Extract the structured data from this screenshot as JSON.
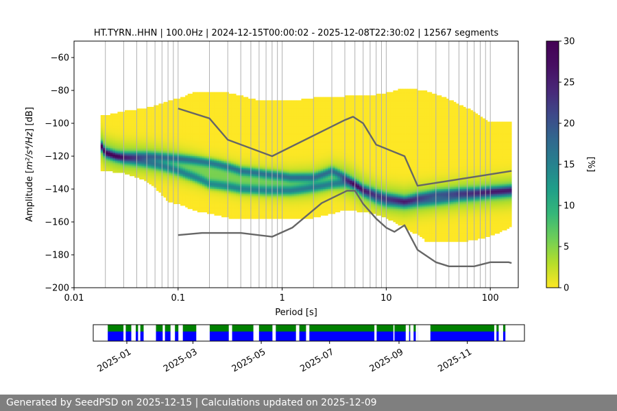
{
  "chart_data": {
    "type": "heatmap",
    "title": "HT.TYRN..HHN | 100.0Hz | 2024-12-15T00:00:02 - 2025-12-08T22:30:02 | 12567 segments",
    "xlabel": "Period [s]",
    "ylabel_prefix": "Amplitude [",
    "ylabel_math": "m²/s⁴/Hz",
    "ylabel_suffix": "] [dB]",
    "x_scale": "log",
    "xlim": [
      0.01,
      160
    ],
    "ylim": [
      -200,
      -50
    ],
    "x_ticks": [
      {
        "value": 0.01,
        "label": "0.01"
      },
      {
        "value": 0.1,
        "label": "0.1"
      },
      {
        "value": 1,
        "label": "1"
      },
      {
        "value": 10,
        "label": "10"
      },
      {
        "value": 100,
        "label": "100"
      }
    ],
    "y_ticks": [
      {
        "value": -60,
        "label": "−60"
      },
      {
        "value": -80,
        "label": "−80"
      },
      {
        "value": -100,
        "label": "−100"
      },
      {
        "value": -120,
        "label": "−120"
      },
      {
        "value": -140,
        "label": "−140"
      },
      {
        "value": -160,
        "label": "−160"
      },
      {
        "value": -180,
        "label": "−180"
      },
      {
        "value": -200,
        "label": "−200"
      }
    ],
    "grid_periods": [
      0.02,
      0.03,
      0.04,
      0.05,
      0.06,
      0.07,
      0.08,
      0.09,
      0.1,
      0.2,
      0.3,
      0.4,
      0.5,
      0.6,
      0.7,
      0.8,
      0.9,
      1,
      2,
      3,
      4,
      5,
      6,
      7,
      8,
      9,
      10,
      20,
      30,
      40,
      50,
      60,
      70,
      80,
      90,
      100
    ],
    "colorbar": {
      "label": "[%]",
      "range": [
        0,
        30
      ],
      "ticks": [
        {
          "value": 0,
          "label": "0"
        },
        {
          "value": 5,
          "label": "5"
        },
        {
          "value": 10,
          "label": "10"
        },
        {
          "value": 15,
          "label": "15"
        },
        {
          "value": 20,
          "label": "20"
        },
        {
          "value": 25,
          "label": "25"
        },
        {
          "value": 30,
          "label": "30"
        }
      ]
    },
    "series": [
      {
        "period": [
          0.1,
          0.2,
          0.3,
          0.8,
          4.0,
          4.8,
          6.0,
          8.0,
          15.0,
          20.0,
          160.0
        ],
        "db": [
          -91,
          -97,
          -110,
          -120,
          -98,
          -96,
          -100,
          -113,
          -120,
          -138,
          -129
        ]
      },
      {
        "period": [
          0.1,
          0.17,
          0.4,
          0.8,
          1.25,
          2.4,
          4.2,
          5.0,
          6.0,
          8.0,
          10.0,
          12.0,
          15.0,
          20.0,
          30.0,
          40.0,
          70.0,
          100.0,
          150.0,
          160.0
        ],
        "db": [
          -168,
          -166.7,
          -166.7,
          -169,
          -163.5,
          -148.5,
          -141,
          -141,
          -149,
          -158,
          -163.5,
          -166,
          -162,
          -177,
          -184.5,
          -187,
          -187,
          -184.5,
          -184.5,
          -185
        ]
      }
    ],
    "psd_mode": {
      "period": [
        0.018,
        0.02,
        0.025,
        0.03,
        0.05,
        0.08,
        0.12,
        0.2,
        0.4,
        0.7,
        1.2,
        2,
        3,
        4,
        5,
        6,
        8,
        10,
        15,
        20,
        30,
        50,
        100,
        160
      ],
      "upper_mode_db": [
        -113,
        -118,
        -120,
        -120,
        -120,
        -121,
        -122,
        -124,
        -129,
        -131,
        -133,
        -133,
        -129,
        -133,
        -137,
        -140,
        -143,
        -145,
        -147,
        -145,
        -143,
        -142,
        -141,
        -140
      ],
      "lower_mode_db": [
        -113,
        -118,
        -120,
        -122,
        -124,
        -127,
        -131,
        -137,
        -140,
        -141,
        -141,
        -139,
        -137,
        -136,
        -138,
        -142,
        -146,
        -148,
        -149,
        -148,
        -147,
        -145,
        -143,
        -142
      ]
    },
    "psd_extent": {
      "period": [
        0.018,
        0.03,
        0.05,
        0.08,
        0.15,
        0.3,
        0.6,
        1,
        2,
        4,
        8,
        15,
        25,
        50,
        100,
        160
      ],
      "top_db": [
        -95,
        -92,
        -90,
        -86,
        -80,
        -81,
        -86,
        -86,
        -84,
        -83,
        -82,
        -78,
        -80,
        -88,
        -99,
        -99
      ],
      "bottom_db": [
        -128,
        -130,
        -135,
        -147,
        -153,
        -157,
        -158,
        -158,
        -157,
        -152,
        -155,
        -163,
        -172,
        -172,
        -168,
        -162
      ]
    }
  },
  "timeline": {
    "tick_labels": [
      "2025-01",
      "2025-03",
      "2025-05",
      "2025-07",
      "2025-09",
      "2025-11"
    ],
    "tick_dates": [
      "2025-01-01",
      "2025-03-01",
      "2025-05-01",
      "2025-07-01",
      "2025-09-01",
      "2025-11-01"
    ],
    "range": [
      "2024-12-02",
      "2025-12-22"
    ],
    "colors": {
      "available": "#008000",
      "used": "#0000ff"
    },
    "gaps": [
      [
        "2024-12-02",
        "2024-12-15"
      ],
      [
        "2024-12-29",
        "2024-12-31"
      ],
      [
        "2025-01-05",
        "2025-01-09"
      ],
      [
        "2025-01-11",
        "2025-01-13"
      ],
      [
        "2025-01-16",
        "2025-01-27"
      ],
      [
        "2025-02-02",
        "2025-02-04"
      ],
      [
        "2025-02-09",
        "2025-02-13"
      ],
      [
        "2025-02-16",
        "2025-02-20"
      ],
      [
        "2025-03-04",
        "2025-03-16"
      ],
      [
        "2025-04-02",
        "2025-04-05"
      ],
      [
        "2025-04-24",
        "2025-04-29"
      ],
      [
        "2025-05-11",
        "2025-05-14"
      ],
      [
        "2025-06-01",
        "2025-06-04"
      ],
      [
        "2025-06-10",
        "2025-06-13"
      ],
      [
        "2025-08-10",
        "2025-08-12"
      ],
      [
        "2025-08-27",
        "2025-08-28"
      ],
      [
        "2025-09-07",
        "2025-09-10"
      ],
      [
        "2025-09-11",
        "2025-09-14"
      ],
      [
        "2025-09-16",
        "2025-09-18"
      ],
      [
        "2025-09-18",
        "2025-09-29"
      ],
      [
        "2025-11-25",
        "2025-11-27"
      ],
      [
        "2025-11-29",
        "2025-12-03"
      ],
      [
        "2025-12-05",
        "2025-12-22"
      ]
    ]
  },
  "footer": {
    "text": "Generated by SeedPSD on 2025-12-15 | Calculations updated on 2025-12-09"
  }
}
